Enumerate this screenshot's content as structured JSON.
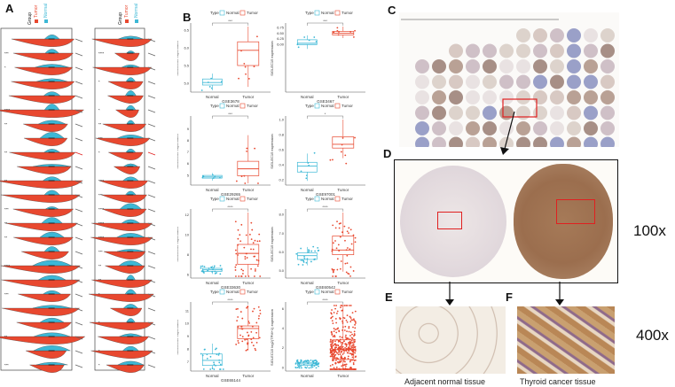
{
  "panels": {
    "a": "A",
    "b": "B",
    "c": "C",
    "d": "D",
    "e": "E",
    "f": "F"
  },
  "panel_a": {
    "legend_title": "Group",
    "legend_items": [
      "Tumor",
      "Normal"
    ],
    "colors": {
      "tumor": "#e8482f",
      "normal": "#3db8d6"
    },
    "rows_left": 24,
    "rows_right": 24
  },
  "chart_data": [
    {
      "type": "box",
      "dataset": "GSE3678",
      "ylabel": "SIGLEC15 expression",
      "categories": [
        "Normal",
        "Tumor"
      ],
      "sig": "***",
      "ylim": [
        4.8,
        6.6
      ],
      "ticks": [
        "5.0",
        "5.5",
        "6.0",
        "6.5"
      ],
      "boxes": [
        [
          4.95,
          5.02,
          5.12
        ],
        [
          5.5,
          5.93,
          6.17
        ]
      ]
    },
    {
      "type": "box",
      "dataset": "GSE3467",
      "ylabel": "SIGLEC15 expression",
      "categories": [
        "Normal",
        "Tumor"
      ],
      "sig": "***",
      "ylim": [
        3.9,
        6.8
      ],
      "ticks": [
        "6.00",
        "6.25",
        "6.50",
        "6.75"
      ],
      "boxes": [
        [
          5.98,
          6.04,
          6.2
        ],
        [
          6.42,
          6.5,
          6.58
        ]
      ]
    },
    {
      "type": "box",
      "dataset": "GSE29265",
      "ylabel": "SIGLEC15 expression",
      "categories": [
        "Normal",
        "Tumor"
      ],
      "sig": "***",
      "ylim": [
        4.3,
        9.8
      ],
      "ticks": [
        "5",
        "6",
        "7",
        "8",
        "9"
      ],
      "boxes": [
        [
          4.75,
          4.85,
          4.98
        ],
        [
          4.95,
          5.55,
          6.2
        ]
      ]
    },
    {
      "type": "box",
      "dataset": "GSE97001",
      "ylabel": "SIGLEC15 expression",
      "categories": [
        "Normal",
        "Tumor"
      ],
      "sig": "*",
      "ylim": [
        0.15,
        1.0
      ],
      "ticks": [
        "0.2",
        "0.4",
        "0.6",
        "0.8",
        "1.0"
      ],
      "boxes": [
        [
          0.3,
          0.38,
          0.43
        ],
        [
          0.62,
          0.67,
          0.77
        ]
      ]
    },
    {
      "type": "box",
      "dataset": "GSE33630",
      "ylabel": "SIGLEC15 expression",
      "categories": [
        "Normal",
        "Tumor"
      ],
      "sig": "****",
      "ylim": [
        5.8,
        12.2
      ],
      "ticks": [
        "6",
        "8",
        "10",
        "12"
      ],
      "boxes": [
        [
          6.3,
          6.45,
          6.6
        ],
        [
          7.0,
          8.1,
          9.0
        ]
      ]
    },
    {
      "type": "box",
      "dataset": "GSE60542",
      "ylabel": "SIGLEC15 expression",
      "categories": [
        "Normal",
        "Tumor"
      ],
      "sig": "****",
      "ylim": [
        4.7,
        8.1
      ],
      "ticks": [
        "5.0",
        "6.0",
        "7.0",
        "8.0"
      ],
      "boxes": [
        [
          5.6,
          5.8,
          5.95
        ],
        [
          5.85,
          6.1,
          6.85
        ]
      ]
    },
    {
      "type": "box",
      "dataset": "GSE65144",
      "ylabel": "SIGLEC15 expression",
      "categories": [
        "Normal",
        "Tumor"
      ],
      "sig": "****",
      "ylim": [
        6.4,
        11.4
      ],
      "ticks": [
        "7",
        "8",
        "9",
        "10",
        "11"
      ],
      "boxes": [
        [
          6.7,
          7.1,
          7.6
        ],
        [
          8.8,
          9.6,
          9.8
        ]
      ]
    },
    {
      "type": "box",
      "dataset": "",
      "ylabel": "SIGLEC15 log2(TPM+1) expression",
      "categories": [
        "Normal",
        "Tumor"
      ],
      "sig": "****",
      "ylim": [
        -0.2,
        6.3
      ],
      "ticks": [
        "0",
        "2",
        "4",
        "6"
      ],
      "boxes": [
        [
          0.2,
          0.35,
          0.5
        ],
        [
          0.8,
          1.8,
          2.8
        ]
      ]
    }
  ],
  "legend_b": {
    "title": "Type",
    "normal": "Normal",
    "tumor": "Tumor"
  },
  "magnifications": {
    "low": "100x",
    "high": "400x"
  },
  "captions": {
    "e": "Adjacent normal tissue",
    "f": "Thyroid cancer tissue"
  }
}
